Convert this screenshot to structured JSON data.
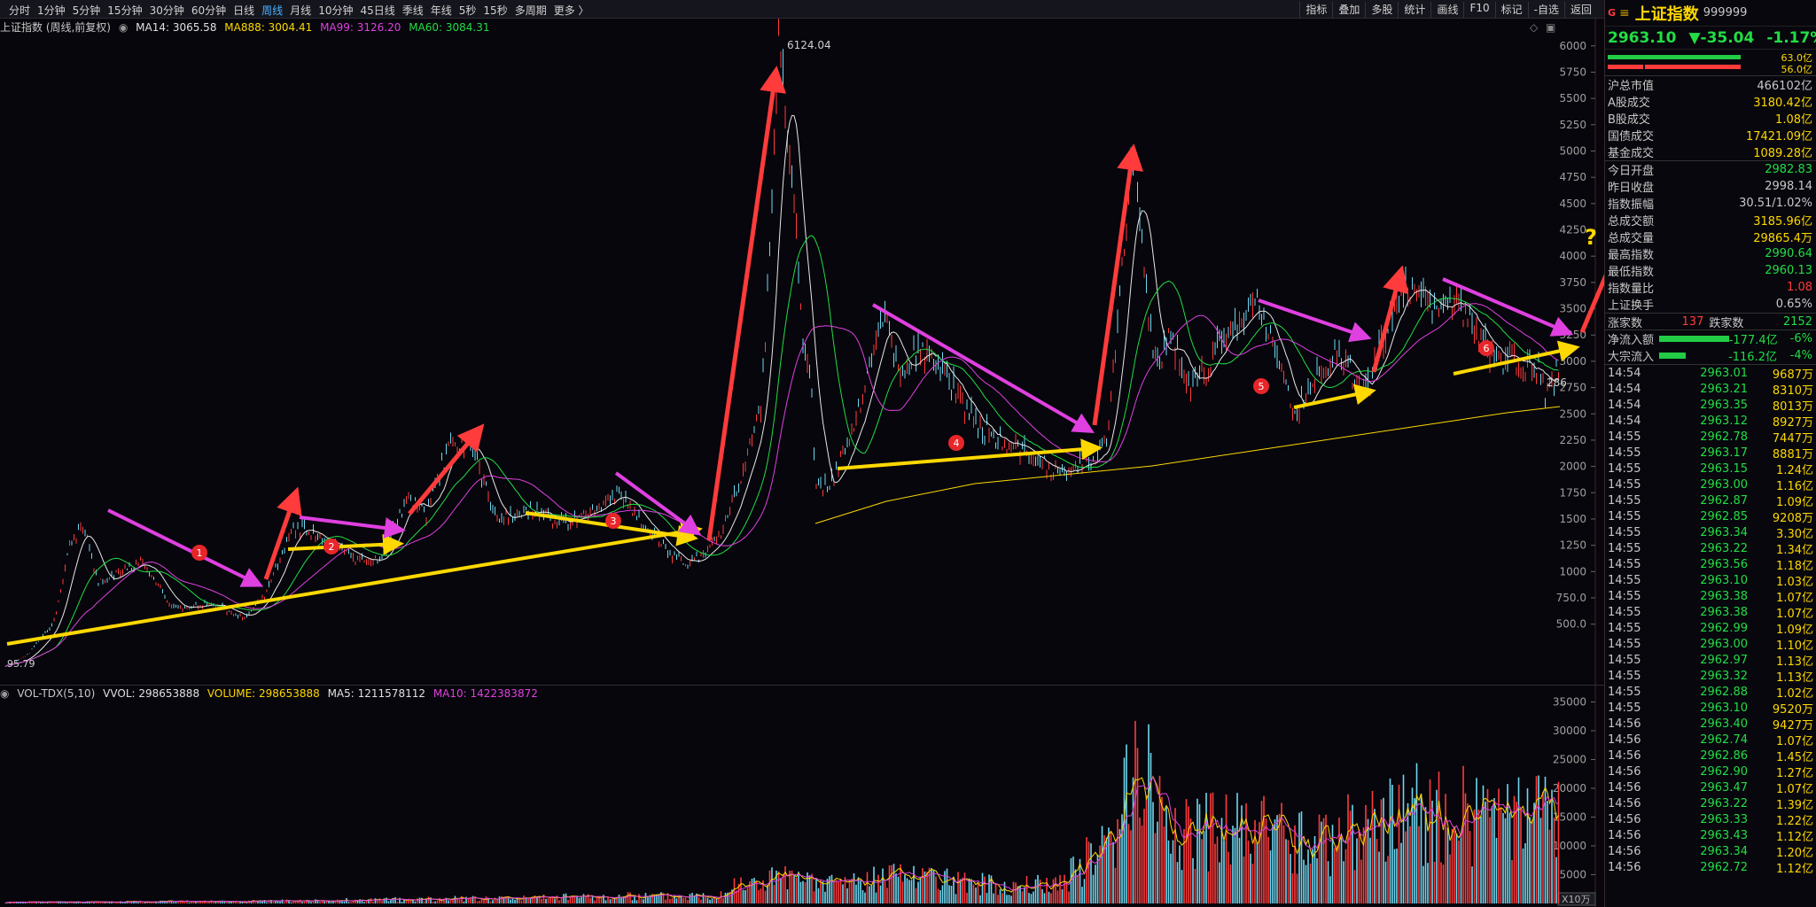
{
  "toolbar": {
    "periods": [
      "分时",
      "1分钟",
      "5分钟",
      "15分钟",
      "30分钟",
      "60分钟",
      "日线",
      "周线",
      "月线",
      "10分钟",
      "45日线",
      "季线",
      "年线",
      "5秒",
      "15秒",
      "多周期",
      "更多 〉"
    ],
    "active_period": "周线",
    "tools": [
      "指标",
      "叠加",
      "多股",
      "统计",
      "画线",
      "F10",
      "标记",
      "-自选",
      "返回"
    ]
  },
  "main": {
    "title": "上证指数 (周线,前复权)",
    "ma14": "MA14: 3065.58",
    "ma888": "MA888: 3004.41",
    "ma99": "MA99: 3126.20",
    "ma60": "MA60: 3084.31",
    "peak_label": "6124.04",
    "low_label": "95.79",
    "last_label": "286",
    "markers": [
      "1",
      "2",
      "3",
      "4",
      "5",
      "6"
    ],
    "question": "?",
    "axis": [
      "6000",
      "5750",
      "5500",
      "5250",
      "5000",
      "4750",
      "4500",
      "4250",
      "4000",
      "3750",
      "3500",
      "3250",
      "3000",
      "2750",
      "2500",
      "2250",
      "2000",
      "1750",
      "1500",
      "1250",
      "1000",
      "750.0",
      "500.0"
    ]
  },
  "volume": {
    "title": "VOL-TDX(5,10)",
    "vvol": "VVOL: 298653888",
    "volume": "VOLUME: 298653888",
    "ma5": "MA5: 1211578112",
    "ma10": "MA10: 1422383872",
    "axis": [
      "35000",
      "30000",
      "25000",
      "20000",
      "15000",
      "10000",
      "5000"
    ],
    "unit": "X10万"
  },
  "colors": {
    "up": "#ff3b3b",
    "down": "#22dd44",
    "yellow": "#ffd800",
    "magenta": "#e040e0",
    "cyan": "#6fd8f0"
  },
  "quote": {
    "g": "G",
    "menu_icon": "≡",
    "name": "上证指数",
    "code": "999999",
    "price": "2963.10",
    "change": "▼-35.04",
    "pct": "-1.17%",
    "bar1": "63.0亿",
    "bar2": "56.0亿",
    "rows1": [
      {
        "k": "沪总市值",
        "v": "466102亿",
        "c": "#c8c8c8"
      },
      {
        "k": "A股成交",
        "v": "3180.42亿",
        "c": "#ffd800"
      },
      {
        "k": "B股成交",
        "v": "1.08亿",
        "c": "#ffd800"
      },
      {
        "k": "国债成交",
        "v": "17421.09亿",
        "c": "#ffd800"
      },
      {
        "k": "基金成交",
        "v": "1089.28亿",
        "c": "#ffd800"
      }
    ],
    "rows2": [
      {
        "k": "今日开盘",
        "v": "2982.83",
        "c": "#22dd44"
      },
      {
        "k": "昨日收盘",
        "v": "2998.14",
        "c": "#c8c8c8"
      },
      {
        "k": "指数振幅",
        "v": "30.51/1.02%",
        "c": "#c8c8c8"
      },
      {
        "k": "总成交额",
        "v": "3185.96亿",
        "c": "#ffd800"
      },
      {
        "k": "总成交量",
        "v": "29865.4万",
        "c": "#ffd800"
      },
      {
        "k": "最高指数",
        "v": "2990.64",
        "c": "#22dd44"
      },
      {
        "k": "最低指数",
        "v": "2960.13",
        "c": "#22dd44"
      },
      {
        "k": "指数量比",
        "v": "1.08",
        "c": "#ff3b3b"
      },
      {
        "k": "上证换手",
        "v": "0.65%",
        "c": "#c8c8c8"
      }
    ],
    "up_label": "涨家数",
    "up_count": "137",
    "down_label": "跌家数",
    "down_count": "2152",
    "flow": [
      {
        "k": "净流入额",
        "v": "-177.4亿",
        "pct": "-6%"
      },
      {
        "k": "大宗流入",
        "v": "-116.2亿",
        "pct": "-4%"
      }
    ],
    "ticks": [
      [
        "14:54",
        "2963.01",
        "9687万"
      ],
      [
        "14:54",
        "2963.21",
        "8310万"
      ],
      [
        "14:54",
        "2963.35",
        "8013万"
      ],
      [
        "14:54",
        "2963.12",
        "8927万"
      ],
      [
        "14:55",
        "2962.78",
        "7447万"
      ],
      [
        "14:55",
        "2963.17",
        "8881万"
      ],
      [
        "14:55",
        "2963.15",
        "1.24亿"
      ],
      [
        "14:55",
        "2963.00",
        "1.16亿"
      ],
      [
        "14:55",
        "2962.87",
        "1.09亿"
      ],
      [
        "14:55",
        "2962.85",
        "9208万"
      ],
      [
        "14:55",
        "2963.34",
        "3.30亿"
      ],
      [
        "14:55",
        "2963.22",
        "1.34亿"
      ],
      [
        "14:55",
        "2963.56",
        "1.18亿"
      ],
      [
        "14:55",
        "2963.10",
        "1.03亿"
      ],
      [
        "14:55",
        "2963.38",
        "1.07亿"
      ],
      [
        "14:55",
        "2963.38",
        "1.07亿"
      ],
      [
        "14:55",
        "2962.99",
        "1.09亿"
      ],
      [
        "14:55",
        "2963.00",
        "1.10亿"
      ],
      [
        "14:55",
        "2962.97",
        "1.13亿"
      ],
      [
        "14:55",
        "2963.32",
        "1.13亿"
      ],
      [
        "14:55",
        "2962.88",
        "1.02亿"
      ],
      [
        "14:55",
        "2963.10",
        "9520万"
      ],
      [
        "14:56",
        "2963.40",
        "9427万"
      ],
      [
        "14:56",
        "2962.74",
        "1.07亿"
      ],
      [
        "14:56",
        "2962.86",
        "1.45亿"
      ],
      [
        "14:56",
        "2962.90",
        "1.27亿"
      ],
      [
        "14:56",
        "2963.47",
        "1.07亿"
      ],
      [
        "14:56",
        "2963.22",
        "1.39亿"
      ],
      [
        "14:56",
        "2963.33",
        "1.22亿"
      ],
      [
        "14:56",
        "2963.43",
        "1.12亿"
      ],
      [
        "14:56",
        "2963.34",
        "1.20亿"
      ],
      [
        "14:56",
        "2962.72",
        "1.12亿"
      ]
    ]
  }
}
